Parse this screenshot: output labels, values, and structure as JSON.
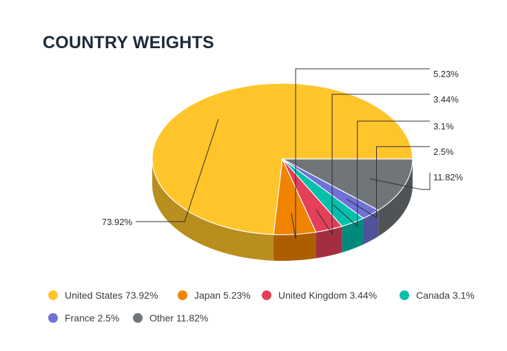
{
  "chart_data": {
    "type": "pie",
    "title": "COUNTRY WEIGHTS",
    "categories": [
      "United States",
      "Japan",
      "United Kingdom",
      "Canada",
      "France",
      "Other"
    ],
    "values": [
      73.92,
      5.23,
      3.44,
      3.1,
      2.5,
      11.82
    ],
    "data_labels": [
      "73.92%",
      "5.23%",
      "3.44%",
      "3.1%",
      "2.5%",
      "11.82%"
    ],
    "colors": [
      "#FFC52B",
      "#F08300",
      "#E4405A",
      "#00C0AB",
      "#6F72D6",
      "#707579"
    ],
    "legend": {
      "placement": "bottom",
      "entries": [
        "United States 73.92%",
        "Japan 5.23%",
        "United Kingdom 3.44%",
        "Canada 3.1%",
        "France 2.5%",
        "Other 11.82%"
      ]
    },
    "style": "3d"
  },
  "clipped_fragment": "%"
}
